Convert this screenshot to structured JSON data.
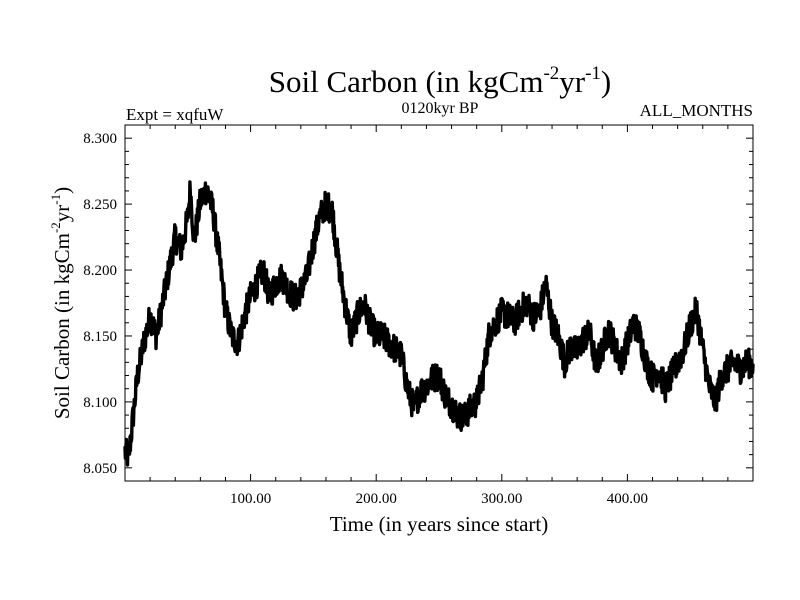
{
  "chart_data": {
    "type": "line",
    "title": "Soil Carbon (in kgCm",
    "title_exp1": "-2",
    "title_mid": "yr",
    "title_exp2": "-1",
    "title_end": ")",
    "subtitle_left": "Expt = xqfuW",
    "subtitle_center": "0120kyr BP",
    "subtitle_right": "ALL_MONTHS",
    "xlabel": "Time (in years since start)",
    "ylabel": "Soil Carbon (in kgCm",
    "ylabel_exp1": "-2",
    "ylabel_mid": "yr",
    "ylabel_exp2": "-1",
    "ylabel_end": ")",
    "xlim": [
      0,
      500
    ],
    "ylim": [
      8.04,
      8.31
    ],
    "x_ticks": [
      100,
      200,
      300,
      400
    ],
    "x_tick_labels": [
      "100.00",
      "200.00",
      "300.00",
      "400.00"
    ],
    "y_ticks": [
      8.05,
      8.1,
      8.15,
      8.2,
      8.25,
      8.3
    ],
    "y_tick_labels": [
      "8.050",
      "8.100",
      "8.150",
      "8.200",
      "8.250",
      "8.300"
    ],
    "grid": false,
    "line_color": "#000000",
    "series": [
      {
        "name": "Soil Carbon",
        "x": [
          0,
          3,
          6,
          10,
          15,
          20,
          25,
          30,
          35,
          40,
          45,
          50,
          52,
          55,
          60,
          65,
          70,
          75,
          80,
          85,
          90,
          95,
          100,
          105,
          110,
          115,
          120,
          125,
          130,
          135,
          140,
          145,
          150,
          155,
          160,
          165,
          170,
          175,
          180,
          185,
          190,
          195,
          200,
          205,
          210,
          215,
          220,
          225,
          230,
          235,
          240,
          245,
          250,
          255,
          260,
          265,
          270,
          275,
          280,
          285,
          290,
          295,
          300,
          305,
          310,
          315,
          320,
          325,
          330,
          335,
          340,
          345,
          350,
          355,
          360,
          365,
          370,
          375,
          380,
          385,
          390,
          395,
          400,
          405,
          410,
          415,
          420,
          425,
          430,
          435,
          440,
          445,
          450,
          455,
          460,
          465,
          470,
          475,
          480,
          485,
          490,
          495,
          500
        ],
        "values": [
          8.062,
          8.058,
          8.085,
          8.12,
          8.145,
          8.165,
          8.15,
          8.175,
          8.2,
          8.225,
          8.215,
          8.24,
          8.262,
          8.222,
          8.252,
          8.262,
          8.245,
          8.21,
          8.17,
          8.15,
          8.145,
          8.165,
          8.18,
          8.19,
          8.2,
          8.18,
          8.19,
          8.195,
          8.185,
          8.178,
          8.185,
          8.195,
          8.22,
          8.24,
          8.25,
          8.245,
          8.205,
          8.175,
          8.15,
          8.165,
          8.175,
          8.16,
          8.15,
          8.15,
          8.145,
          8.14,
          8.135,
          8.11,
          8.095,
          8.108,
          8.112,
          8.118,
          8.12,
          8.105,
          8.098,
          8.09,
          8.088,
          8.095,
          8.1,
          8.12,
          8.152,
          8.16,
          8.168,
          8.165,
          8.16,
          8.17,
          8.175,
          8.165,
          8.168,
          8.19,
          8.16,
          8.15,
          8.13,
          8.142,
          8.138,
          8.148,
          8.152,
          8.128,
          8.14,
          8.155,
          8.142,
          8.13,
          8.145,
          8.16,
          8.15,
          8.13,
          8.118,
          8.125,
          8.11,
          8.12,
          8.13,
          8.14,
          8.158,
          8.17,
          8.14,
          8.112,
          8.1,
          8.12,
          8.125,
          8.13,
          8.125,
          8.13,
          8.128
        ]
      }
    ]
  }
}
